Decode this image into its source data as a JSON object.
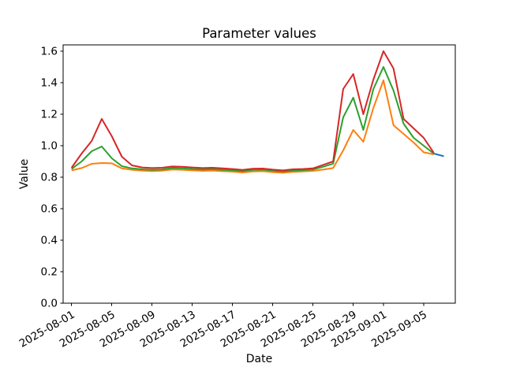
{
  "chart_data": {
    "type": "line",
    "title": "Parameter values",
    "xlabel": "Date",
    "ylabel": "Value",
    "grid": false,
    "legend": false,
    "ylim": [
      0.0,
      1.64
    ],
    "xlim": [
      "2025-07-31",
      "2025-09-08"
    ],
    "y_tick_labels": [
      "0.0",
      "0.2",
      "0.4",
      "0.6",
      "0.8",
      "1.0",
      "1.2",
      "1.4",
      "1.6"
    ],
    "x_tick_labels": [
      "2025-08-01",
      "2025-08-05",
      "2025-08-09",
      "2025-08-13",
      "2025-08-17",
      "2025-08-21",
      "2025-08-25",
      "2025-08-29",
      "2025-09-01",
      "2025-09-05"
    ],
    "x": [
      "2025-08-01",
      "2025-08-02",
      "2025-08-03",
      "2025-08-04",
      "2025-08-05",
      "2025-08-06",
      "2025-08-07",
      "2025-08-08",
      "2025-08-09",
      "2025-08-10",
      "2025-08-11",
      "2025-08-12",
      "2025-08-13",
      "2025-08-14",
      "2025-08-15",
      "2025-08-16",
      "2025-08-17",
      "2025-08-18",
      "2025-08-19",
      "2025-08-20",
      "2025-08-21",
      "2025-08-22",
      "2025-08-23",
      "2025-08-24",
      "2025-08-25",
      "2025-08-26",
      "2025-08-27",
      "2025-08-28",
      "2025-08-29",
      "2025-08-30",
      "2025-08-31",
      "2025-09-01",
      "2025-09-02",
      "2025-09-03",
      "2025-09-04",
      "2025-09-05",
      "2025-09-06"
    ],
    "series": [
      {
        "name": "blue",
        "color": "#1f77b4",
        "x": [
          "2025-09-06",
          "2025-09-07"
        ],
        "values": [
          0.95,
          0.933
        ]
      },
      {
        "name": "orange",
        "color": "#ff7f0e",
        "values": [
          0.843,
          0.858,
          0.885,
          0.89,
          0.888,
          0.856,
          0.847,
          0.842,
          0.839,
          0.841,
          0.849,
          0.847,
          0.843,
          0.84,
          0.842,
          0.838,
          0.835,
          0.83,
          0.836,
          0.838,
          0.832,
          0.828,
          0.834,
          0.836,
          0.84,
          0.848,
          0.858,
          0.97,
          1.1,
          1.025,
          1.24,
          1.415,
          1.13,
          1.075,
          1.02,
          0.958,
          0.945
        ]
      },
      {
        "name": "green",
        "color": "#2ca02c",
        "values": [
          0.852,
          0.9,
          0.965,
          0.995,
          0.92,
          0.87,
          0.856,
          0.85,
          0.847,
          0.849,
          0.858,
          0.856,
          0.852,
          0.849,
          0.851,
          0.847,
          0.844,
          0.839,
          0.846,
          0.848,
          0.841,
          0.836,
          0.842,
          0.845,
          0.849,
          0.866,
          0.886,
          1.18,
          1.305,
          1.1,
          1.36,
          1.5,
          1.35,
          1.14,
          1.05,
          1.0,
          0.95
        ]
      },
      {
        "name": "red",
        "color": "#d62728",
        "values": [
          0.86,
          0.95,
          1.03,
          1.17,
          1.06,
          0.93,
          0.875,
          0.862,
          0.858,
          0.86,
          0.868,
          0.866,
          0.862,
          0.858,
          0.86,
          0.856,
          0.852,
          0.846,
          0.854,
          0.855,
          0.848,
          0.843,
          0.85,
          0.852,
          0.856,
          0.878,
          0.9,
          1.36,
          1.455,
          1.2,
          1.42,
          1.6,
          1.49,
          1.17,
          1.11,
          1.05,
          0.955
        ]
      }
    ]
  }
}
